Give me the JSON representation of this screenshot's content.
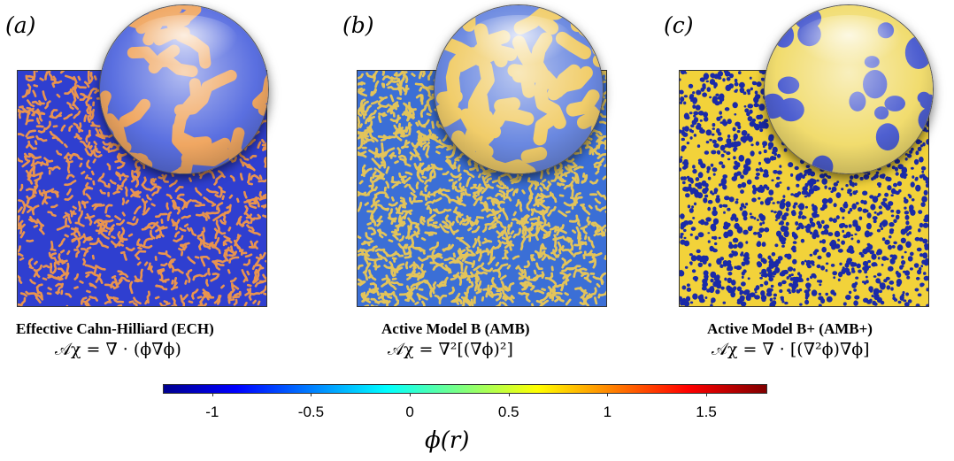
{
  "panels": [
    {
      "label": "(a)",
      "title": "Effective Cahn-Hilliard (ECH)",
      "equation": "𝒜χ = ∇ · (ϕ∇ϕ)",
      "background": "#2f3fd0",
      "feature": "#e9944f",
      "pattern": "labyrinth-minority"
    },
    {
      "label": "(b)",
      "title": "Active Model B (AMB)",
      "equation": "𝒜χ = ∇²[(∇ϕ)²]",
      "background": "#3b6fd6",
      "feature": "#e3c45a",
      "pattern": "labyrinth-balanced"
    },
    {
      "label": "(c)",
      "title": "Active Model B+ (AMB+)",
      "equation": "𝒜χ = ∇ · [(∇²ϕ)∇ϕ]",
      "background": "#f2d23a",
      "feature": "#1a2aa8",
      "pattern": "droplets"
    }
  ],
  "colorbar": {
    "label": "ϕ(r)",
    "ticks": [
      "-1",
      "-0.5",
      "0",
      "0.5",
      "1",
      "1.5"
    ],
    "range": [
      -1.25,
      1.8
    ],
    "colormap": "jet"
  }
}
